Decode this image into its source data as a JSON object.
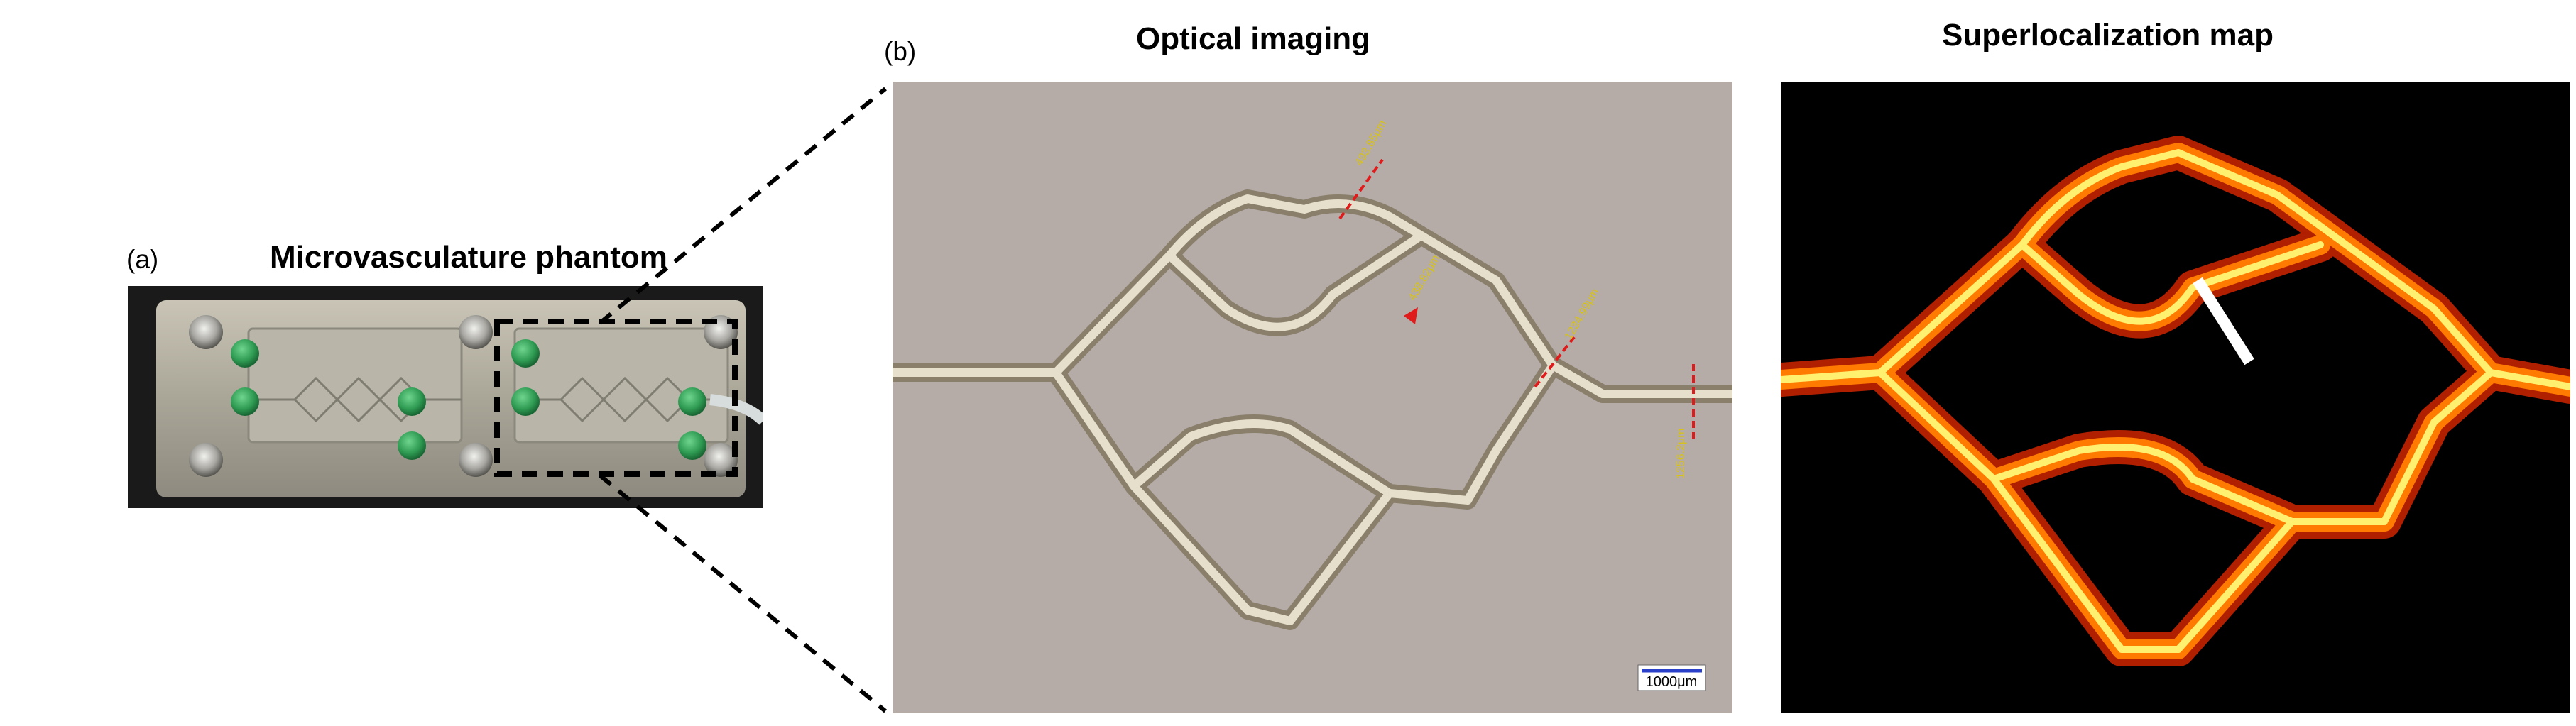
{
  "figure": {
    "panel_a": {
      "label": "(a)",
      "title": "Microvasculature phantom"
    },
    "panel_b": {
      "label": "(b)",
      "title_optical": "Optical imaging",
      "title_map": "Superlocalization map",
      "scale_bar_text": "1000μm",
      "measurement_labels": [
        "493.85μm",
        "438.82μm",
        "1234.99μm",
        "1256.2μm"
      ]
    }
  },
  "colors": {
    "background": "#ffffff",
    "optical_background": "#b5aba7",
    "map_background": "#000000",
    "vessel_hot": "#ff7a00",
    "vessel_core": "#fff070",
    "connector_green": "#2e9a52",
    "annotation_red": "#e01b1b",
    "annotation_yellow": "#d6c21a",
    "scale_bar_blue": "#2b40c8"
  },
  "icons": [
    "inlet-port-icon",
    "screw-icon",
    "tubing-icon",
    "scale-bar-icon"
  ]
}
